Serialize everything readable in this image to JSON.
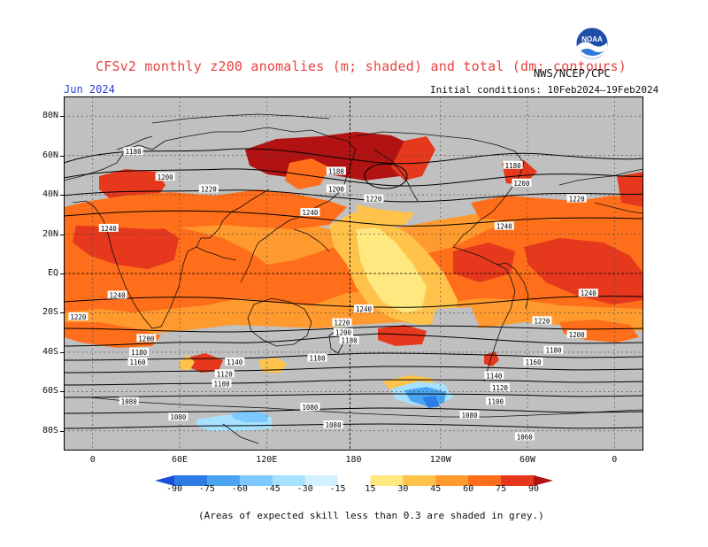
{
  "header": {
    "title": "CFSv2 monthly z200 anomalies (m; shaded) and total (dm; contours)",
    "month": "Jun 2024",
    "agency": "NWS/NCEP/CPC",
    "initial_conditions": "Initial conditions: 10Feb2024–19Feb2024",
    "logo_text": "NOAA"
  },
  "map": {
    "lat_labels": [
      "80N",
      "60N",
      "40N",
      "20N",
      "EQ",
      "20S",
      "40S",
      "60S",
      "80S"
    ],
    "lat_values": [
      80,
      60,
      40,
      20,
      0,
      -20,
      -40,
      -60,
      -80
    ],
    "lon_labels": [
      "0",
      "60E",
      "120E",
      "180",
      "120W",
      "60W",
      "0"
    ],
    "lon_values": [
      0,
      60,
      120,
      180,
      240,
      300,
      360
    ],
    "lon_range": [
      -20,
      380
    ],
    "lat_range": [
      -90,
      90
    ],
    "contour_labels": [
      {
        "text": "1180",
        "lon": 28,
        "lat": 62
      },
      {
        "text": "1200",
        "lon": 50,
        "lat": 49
      },
      {
        "text": "1220",
        "lon": 80,
        "lat": 43
      },
      {
        "text": "1240",
        "lon": 11,
        "lat": 23
      },
      {
        "text": "1240",
        "lon": 150,
        "lat": 31
      },
      {
        "text": "1180",
        "lon": 168,
        "lat": 52
      },
      {
        "text": "1200",
        "lon": 168,
        "lat": 43
      },
      {
        "text": "1220",
        "lon": 194,
        "lat": 38
      },
      {
        "text": "1180",
        "lon": 290,
        "lat": 55
      },
      {
        "text": "1200",
        "lon": 296,
        "lat": 46
      },
      {
        "text": "1220",
        "lon": 334,
        "lat": 38
      },
      {
        "text": "1240",
        "lon": 284,
        "lat": 24
      },
      {
        "text": "1240",
        "lon": 17,
        "lat": -11
      },
      {
        "text": "1220",
        "lon": -10,
        "lat": -22
      },
      {
        "text": "1240",
        "lon": 187,
        "lat": -18
      },
      {
        "text": "1240",
        "lon": 342,
        "lat": -10
      },
      {
        "text": "1220",
        "lon": 172,
        "lat": -25
      },
      {
        "text": "1200",
        "lon": 173,
        "lat": -30
      },
      {
        "text": "1180",
        "lon": 177,
        "lat": -34
      },
      {
        "text": "1220",
        "lon": 310,
        "lat": -24
      },
      {
        "text": "1200",
        "lon": 334,
        "lat": -31
      },
      {
        "text": "1200",
        "lon": 37,
        "lat": -33
      },
      {
        "text": "1180",
        "lon": 32,
        "lat": -40
      },
      {
        "text": "1160",
        "lon": 31,
        "lat": -45
      },
      {
        "text": "1140",
        "lon": 98,
        "lat": -45
      },
      {
        "text": "1120",
        "lon": 91,
        "lat": -51
      },
      {
        "text": "1100",
        "lon": 89,
        "lat": -56
      },
      {
        "text": "1180",
        "lon": 155,
        "lat": -43
      },
      {
        "text": "1180",
        "lon": 318,
        "lat": -39
      },
      {
        "text": "1160",
        "lon": 304,
        "lat": -45
      },
      {
        "text": "1140",
        "lon": 277,
        "lat": -52
      },
      {
        "text": "1120",
        "lon": 281,
        "lat": -58
      },
      {
        "text": "1100",
        "lon": 278,
        "lat": -65
      },
      {
        "text": "1080",
        "lon": 25,
        "lat": -65
      },
      {
        "text": "1080",
        "lon": 150,
        "lat": -68
      },
      {
        "text": "1080",
        "lon": 59,
        "lat": -73
      },
      {
        "text": "1080",
        "lon": 260,
        "lat": -72
      },
      {
        "text": "1080",
        "lon": 166,
        "lat": -77
      },
      {
        "text": "1060",
        "lon": 298,
        "lat": -83
      }
    ],
    "colors": {
      "grey": "#c0c0c0",
      "c15": "#ffe87f",
      "c30": "#ffc24a",
      "c45": "#ff9a2e",
      "c60": "#ff6e1a",
      "c75": "#e5381c",
      "c90": "#b31212",
      "cn15": "#a6e1ff",
      "cn30": "#7dc8ff",
      "cn45": "#4ba4f2",
      "cn60": "#2d7ce6"
    }
  },
  "colorbar": {
    "labels": [
      "-90",
      "-75",
      "-60",
      "-45",
      "-30",
      "-15",
      "15",
      "30",
      "45",
      "60",
      "75",
      "90"
    ],
    "colors": [
      "#1a4fd6",
      "#2d7ce6",
      "#4ba4f2",
      "#7dc8ff",
      "#a6e1ff",
      "#d2f0ff",
      "#ffffff",
      "#ffe87f",
      "#ffc24a",
      "#ff9a2e",
      "#ff6e1a",
      "#e5381c",
      "#b31212"
    ]
  },
  "footnote": "(Areas of expected skill less than 0.3 are shaded in grey.)"
}
